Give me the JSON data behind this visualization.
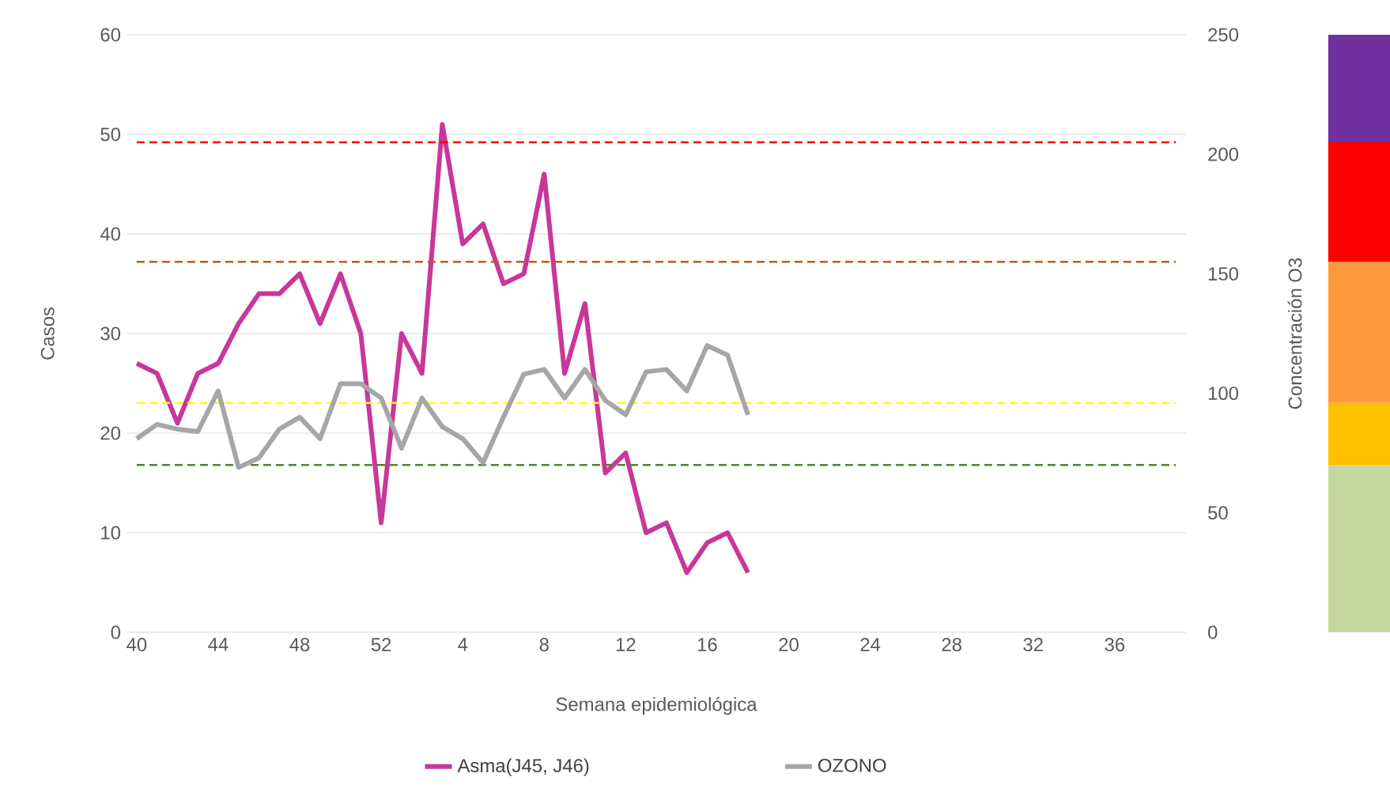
{
  "chart_data": {
    "type": "line",
    "xlabel": "Semana epidemiológica",
    "ylabel": "Casos",
    "y2label": "Concentración O3",
    "categories": [
      "40",
      null,
      null,
      null,
      "44",
      null,
      null,
      null,
      "48",
      null,
      null,
      null,
      "52",
      null,
      null,
      null,
      "4",
      null,
      null,
      null,
      "8",
      null,
      null,
      null,
      "12",
      null,
      null,
      null,
      "16",
      null,
      null,
      null,
      "20",
      null,
      null,
      null,
      "24",
      null,
      null,
      null,
      "28",
      null,
      null,
      null,
      "32",
      null,
      null,
      null,
      "36",
      null,
      null,
      null
    ],
    "series": [
      {
        "name": "Asma(J45, J46)",
        "color": "#c8379a",
        "values": [
          27,
          26,
          21,
          26,
          27,
          31,
          34,
          34,
          36,
          31,
          36,
          30,
          11,
          30,
          26,
          51,
          39,
          41,
          35,
          36,
          46,
          26,
          33,
          16,
          18,
          10,
          11,
          6,
          9,
          10,
          6,
          null,
          null,
          null,
          null,
          null,
          null,
          null,
          null,
          null,
          null,
          null,
          null,
          null,
          null,
          null,
          null,
          null,
          null,
          null,
          null,
          null
        ]
      },
      {
        "name": "OZONO",
        "color": "#a6a6a6",
        "axis": "y2",
        "values": [
          81,
          87,
          85,
          84,
          101,
          69,
          73,
          85,
          90,
          81,
          104,
          104,
          98,
          77,
          98,
          86,
          81,
          71,
          90,
          108,
          110,
          98,
          110,
          97,
          91,
          109,
          110,
          101,
          120,
          116,
          91,
          null,
          null,
          null,
          null,
          null,
          null,
          null,
          null,
          null,
          null,
          null,
          null,
          null,
          null,
          null,
          null,
          null,
          null,
          null,
          null,
          null
        ]
      }
    ],
    "ylim": [
      0,
      60
    ],
    "yticks": [
      0,
      10,
      20,
      30,
      40,
      50,
      60
    ],
    "y2lim": [
      0,
      250
    ],
    "y2ticks": [
      0,
      50,
      100,
      150,
      200,
      250
    ],
    "grid": "y",
    "legend": "bottom",
    "ref_lines": [
      {
        "axis": "y2",
        "value": 205,
        "color": "#ff0000",
        "line_style": "dashed"
      },
      {
        "axis": "y2",
        "value": 155,
        "color": "#c55a11",
        "line_style": "dashed"
      },
      {
        "axis": "y2",
        "value": 96,
        "color": "#ffff00",
        "line_style": "dashed"
      },
      {
        "axis": "y2",
        "value": 70,
        "color": "#548235",
        "line_style": "dashed"
      }
    ]
  }
}
